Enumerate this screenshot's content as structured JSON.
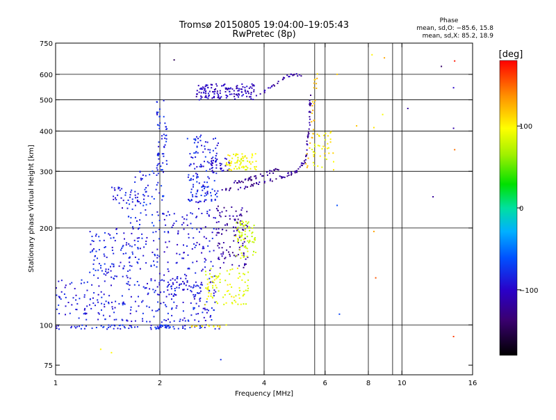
{
  "title_line1": "Tromsø 20150805 19:04:00–19:05:43",
  "title_line2": "RwPretec (8p)",
  "phase_info": {
    "heading": "Phase",
    "line1": "mean, sd,O: −85.6, 15.8",
    "line2": "mean, sd,X:  85.2, 18.9"
  },
  "colorbar": {
    "label": "[deg]",
    "range": [
      -180,
      180
    ],
    "ticks": [
      {
        "label": "100",
        "value": 100
      },
      {
        "label": "0",
        "value": 0
      },
      {
        "label": "−100",
        "value": -100
      }
    ]
  },
  "chart_data": {
    "type": "scatter",
    "title": "Tromsø 20150805 19:04:00–19:05:43",
    "subtitle": "RwPretec (8p)",
    "xlabel": "Frequency [MHz]",
    "ylabel": "Stationary phase Virtual Height [km]",
    "xscale": "log",
    "yscale": "log",
    "xlim": [
      1,
      16
    ],
    "ylim": [
      70,
      750
    ],
    "grid": true,
    "x_ticks": [
      {
        "label": "1",
        "value": 1
      },
      {
        "label": "2",
        "value": 2
      },
      {
        "label": "4",
        "value": 4
      },
      {
        "label": "6",
        "value": 6
      },
      {
        "label": "8",
        "value": 8
      },
      {
        "label": "10",
        "value": 10
      },
      {
        "label": "16",
        "value": 16
      }
    ],
    "y_ticks": [
      {
        "label": "75",
        "value": 75
      },
      {
        "label": "100",
        "value": 100
      },
      {
        "label": "200",
        "value": 200
      },
      {
        "label": "300",
        "value": 300
      },
      {
        "label": "400",
        "value": 400
      },
      {
        "label": "500",
        "value": 500
      },
      {
        "label": "600",
        "value": 600
      },
      {
        "label": "750",
        "value": 750
      }
    ],
    "x_gridlines": [
      2,
      4,
      5.6,
      6,
      8,
      9.4,
      10,
      16
    ],
    "y_gridlines": [
      100,
      200,
      300,
      400,
      500,
      600
    ],
    "color_scale": "phase in degrees, black (−180) → purple → blue → cyan → green → yellow → orange → red (+180)",
    "series": [
      {
        "name": "O-mode",
        "phase_mean": -85.6,
        "phase_sd": 15.8,
        "clusters": [
          {
            "x": [
              1.0,
              3.0
            ],
            "y": [
              97,
              100
            ],
            "n": 70,
            "phase": -85
          },
          {
            "x": [
              1.0,
              2.9
            ],
            "y": [
              102,
              140
            ],
            "n": 260,
            "phase": -88
          },
          {
            "x": [
              1.25,
              2.0
            ],
            "y": [
              140,
              200
            ],
            "n": 140,
            "phase": -85
          },
          {
            "x": [
              1.6,
              2.05
            ],
            "y": [
              200,
              300
            ],
            "n": 70,
            "phase": -82
          },
          {
            "x": [
              1.45,
              1.75
            ],
            "y": [
              230,
              270
            ],
            "n": 30,
            "phase": -90
          },
          {
            "x": [
              1.95,
              2.1
            ],
            "y": [
              300,
              500
            ],
            "n": 55,
            "phase": -80
          },
          {
            "x": [
              2.05,
              2.9
            ],
            "y": [
              120,
              230
            ],
            "n": 150,
            "phase": -92
          },
          {
            "x": [
              2.4,
              2.95
            ],
            "y": [
              240,
              390
            ],
            "n": 140,
            "phase": -85
          },
          {
            "x": [
              2.9,
              3.6
            ],
            "y": [
              150,
              240
            ],
            "n": 110,
            "phase": -118
          },
          {
            "x": [
              2.8,
              3.2
            ],
            "y": [
              300,
              330
            ],
            "n": 30,
            "phase": -100
          },
          {
            "x": [
              2.55,
              3.8
            ],
            "y": [
              500,
              560
            ],
            "n": 140,
            "phase": -105
          },
          {
            "x": [
              1.92,
              2.15
            ],
            "y": [
              97,
              100
            ],
            "n": 20,
            "phase": -80
          }
        ],
        "curves": [
          {
            "x": [
              3.0,
              3.5,
              4.0,
              4.5,
              5.0,
              5.3,
              5.4,
              5.45
            ],
            "y": [
              262,
              268,
              278,
              288,
              300,
              330,
              420,
              520
            ],
            "n": 90,
            "phase": -120,
            "spread": 0.012
          },
          {
            "x": [
              3.2,
              3.6,
              4.0,
              4.4
            ],
            "y": [
              275,
              282,
              292,
              305
            ],
            "n": 40,
            "phase": -125,
            "spread": 0.015
          },
          {
            "x": [
              3.8,
              4.3,
              4.8,
              5.2
            ],
            "y": [
              510,
              560,
              600,
              595
            ],
            "n": 30,
            "phase": -115,
            "spread": 0.01
          }
        ],
        "points": [
          {
            "x": 2.2,
            "y": 665,
            "phase": -140
          },
          {
            "x": 6.5,
            "y": 235,
            "phase": -75
          },
          {
            "x": 6.6,
            "y": 108,
            "phase": -60
          },
          {
            "x": 10.4,
            "y": 470,
            "phase": -120
          },
          {
            "x": 12.3,
            "y": 250,
            "phase": -120
          },
          {
            "x": 13.0,
            "y": 635,
            "phase": -130
          },
          {
            "x": 14.1,
            "y": 545,
            "phase": -90
          },
          {
            "x": 14.1,
            "y": 408,
            "phase": -100
          },
          {
            "x": 3.0,
            "y": 78,
            "phase": -80
          }
        ]
      },
      {
        "name": "X-mode",
        "phase_mean": 85.2,
        "phase_sd": 18.9,
        "clusters": [
          {
            "x": [
              3.1,
              3.8
            ],
            "y": [
              300,
              340
            ],
            "n": 70,
            "phase": 95
          },
          {
            "x": [
              3.3,
              3.8
            ],
            "y": [
              160,
              210
            ],
            "n": 70,
            "phase": 80
          },
          {
            "x": [
              2.7,
              3.6
            ],
            "y": [
              115,
              150
            ],
            "n": 90,
            "phase": 90
          },
          {
            "x": [
              5.5,
              6.4
            ],
            "y": [
              300,
              400
            ],
            "n": 40,
            "phase": 100
          },
          {
            "x": [
              2.4,
              3.2
            ],
            "y": [
              98,
              100
            ],
            "n": 15,
            "phase": 105
          }
        ],
        "curves": [
          {
            "x": [
              5.3,
              5.5,
              5.6,
              5.7
            ],
            "y": [
              300,
              400,
              520,
              640
            ],
            "n": 28,
            "phase": 120,
            "spread": 0.02
          }
        ],
        "points": [
          {
            "x": 6.5,
            "y": 600,
            "phase": 110
          },
          {
            "x": 8.2,
            "y": 690,
            "phase": 110
          },
          {
            "x": 8.9,
            "y": 675,
            "phase": 120
          },
          {
            "x": 8.3,
            "y": 410,
            "phase": 115
          },
          {
            "x": 8.8,
            "y": 450,
            "phase": 100
          },
          {
            "x": 7.4,
            "y": 415,
            "phase": 130
          },
          {
            "x": 14.2,
            "y": 660,
            "phase": 160
          },
          {
            "x": 14.2,
            "y": 350,
            "phase": 150
          },
          {
            "x": 8.3,
            "y": 195,
            "phase": 130
          },
          {
            "x": 8.4,
            "y": 140,
            "phase": 160
          },
          {
            "x": 14.1,
            "y": 92,
            "phase": 150
          },
          {
            "x": 1.45,
            "y": 82,
            "phase": 100
          },
          {
            "x": 1.35,
            "y": 84,
            "phase": 110
          }
        ]
      }
    ]
  }
}
